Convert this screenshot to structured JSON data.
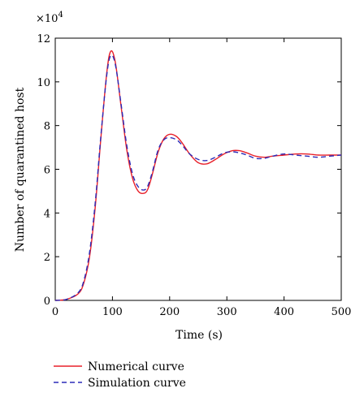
{
  "chart_data": {
    "type": "line",
    "title": "",
    "xlabel": "Time (s)",
    "ylabel": "Number of quarantined host",
    "y_multiplier": "×10",
    "y_multiplier_exponent": "4",
    "xlim": [
      0,
      500
    ],
    "ylim": [
      0,
      12
    ],
    "x_ticks": [
      0,
      100,
      200,
      300,
      400,
      500
    ],
    "y_ticks": [
      0,
      2,
      4,
      6,
      8,
      10,
      12
    ],
    "x_tick_labels": [
      "0",
      "100",
      "200",
      "300",
      "400",
      "500"
    ],
    "y_tick_labels": [
      "0",
      "2",
      "4",
      "6",
      "8",
      "10",
      "12"
    ],
    "grid": false,
    "legend_position": "bottom-left, below plot",
    "series": [
      {
        "name": "Numerical curve",
        "color": "#e8202a",
        "dash": "solid",
        "x": [
          0,
          20,
          40,
          50,
          60,
          70,
          80,
          90,
          97,
          105,
          115,
          125,
          135,
          145,
          155,
          162,
          170,
          180,
          190,
          200,
          212,
          222,
          235,
          250,
          265,
          280,
          295,
          310,
          322,
          335,
          350,
          365,
          380,
          400,
          420,
          440,
          460,
          480,
          500
        ],
        "y": [
          0.0,
          0.05,
          0.3,
          0.8,
          2.0,
          4.3,
          7.5,
          10.4,
          11.4,
          10.9,
          8.9,
          6.9,
          5.6,
          5.0,
          4.9,
          5.1,
          5.8,
          6.8,
          7.4,
          7.6,
          7.5,
          7.2,
          6.7,
          6.3,
          6.25,
          6.45,
          6.7,
          6.85,
          6.85,
          6.75,
          6.6,
          6.55,
          6.6,
          6.65,
          6.7,
          6.7,
          6.65,
          6.65,
          6.65
        ]
      },
      {
        "name": "Simulation curve",
        "color": "#2b2bb8",
        "dash": "dashed",
        "x": [
          0,
          20,
          40,
          50,
          60,
          70,
          80,
          90,
          97,
          105,
          115,
          125,
          135,
          145,
          155,
          162,
          170,
          180,
          190,
          200,
          212,
          222,
          235,
          250,
          265,
          280,
          295,
          310,
          322,
          335,
          350,
          365,
          380,
          400,
          420,
          440,
          460,
          480,
          500
        ],
        "y": [
          0.0,
          0.05,
          0.35,
          0.9,
          2.2,
          4.5,
          7.6,
          10.3,
          11.2,
          10.8,
          9.0,
          7.1,
          5.8,
          5.2,
          5.05,
          5.25,
          5.9,
          6.9,
          7.35,
          7.45,
          7.35,
          7.1,
          6.7,
          6.45,
          6.4,
          6.55,
          6.75,
          6.8,
          6.75,
          6.65,
          6.5,
          6.5,
          6.6,
          6.7,
          6.65,
          6.6,
          6.55,
          6.6,
          6.65
        ]
      }
    ]
  }
}
